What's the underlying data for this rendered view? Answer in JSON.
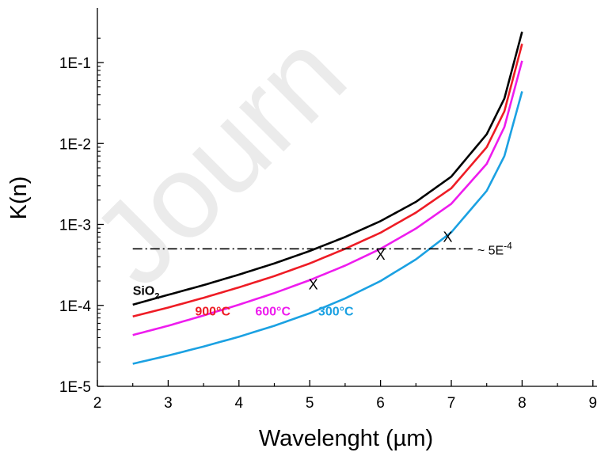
{
  "chart_data": {
    "type": "line",
    "title": "",
    "xlabel": "Wavelenght (µm)",
    "ylabel": "K(n)",
    "xlim": [
      2,
      9
    ],
    "ylim": [
      1e-05,
      0.3
    ],
    "yscale": "log",
    "xticks": [
      "2",
      "3",
      "4",
      "5",
      "6",
      "7",
      "8",
      "9"
    ],
    "yticks": [
      "1E-5",
      "1E-4",
      "1E-3",
      "1E-2",
      "1E-1"
    ],
    "grid": false,
    "watermark": "Journ",
    "series": [
      {
        "name": "SiO2",
        "color": "#000000",
        "points": [
          [
            2.5,
            0.000102
          ],
          [
            3,
            0.000135
          ],
          [
            3.5,
            0.000178
          ],
          [
            4,
            0.00024
          ],
          [
            4.5,
            0.00033
          ],
          [
            5,
            0.00047
          ],
          [
            5.5,
            0.0007
          ],
          [
            6,
            0.0011
          ],
          [
            6.5,
            0.0019
          ],
          [
            7,
            0.0039
          ],
          [
            7.5,
            0.013
          ],
          [
            7.75,
            0.036
          ],
          [
            8,
            0.24
          ]
        ]
      },
      {
        "name": "900°C",
        "color": "#ee1c25",
        "points": [
          [
            2.5,
            7.3e-05
          ],
          [
            3,
            9.4e-05
          ],
          [
            3.5,
            0.000124
          ],
          [
            4,
            0.000167
          ],
          [
            4.5,
            0.00023
          ],
          [
            5,
            0.00033
          ],
          [
            5.5,
            0.0005
          ],
          [
            6,
            0.00079
          ],
          [
            6.5,
            0.0014
          ],
          [
            7,
            0.0028
          ],
          [
            7.5,
            0.009
          ],
          [
            7.75,
            0.025
          ],
          [
            8,
            0.17
          ]
        ]
      },
      {
        "name": "600°C",
        "color": "#ee1cee",
        "points": [
          [
            2.5,
            4.3e-05
          ],
          [
            3,
            5.6e-05
          ],
          [
            3.5,
            7.5e-05
          ],
          [
            4,
            0.000102
          ],
          [
            4.5,
            0.000142
          ],
          [
            5,
            0.000205
          ],
          [
            5.5,
            0.00031
          ],
          [
            6,
            0.0005
          ],
          [
            6.5,
            0.00089
          ],
          [
            7,
            0.0018
          ],
          [
            7.5,
            0.0056
          ],
          [
            7.75,
            0.016
          ],
          [
            8,
            0.105
          ]
        ]
      },
      {
        "name": "300°C",
        "color": "#1ba1e2",
        "points": [
          [
            2.5,
            1.9e-05
          ],
          [
            3,
            2.4e-05
          ],
          [
            3.5,
            3.1e-05
          ],
          [
            4,
            4.1e-05
          ],
          [
            4.5,
            5.6e-05
          ],
          [
            5,
            8e-05
          ],
          [
            5.5,
            0.000122
          ],
          [
            6,
            0.0002
          ],
          [
            6.5,
            0.00037
          ],
          [
            7,
            0.0008
          ],
          [
            7.5,
            0.0026
          ],
          [
            7.75,
            0.007
          ],
          [
            8,
            0.044
          ]
        ]
      }
    ],
    "threshold": {
      "y": 0.0005,
      "x_range": [
        2.5,
        7.3
      ],
      "label": "~ 5E",
      "label_exp": "-4"
    },
    "markers": [
      {
        "symbol": "X",
        "x": 5.05,
        "y": 0.000185
      },
      {
        "symbol": "X",
        "x": 6.0,
        "y": 0.00043
      },
      {
        "symbol": "X",
        "x": 6.95,
        "y": 0.00071
      }
    ],
    "annotations": [
      {
        "text": "SiO",
        "sub": "2",
        "color": "#000000",
        "x": 2.5,
        "y": 0.000135
      },
      {
        "text": "900°C",
        "color": "#ee1c25",
        "x": 3.38,
        "y": 7.5e-05
      },
      {
        "text": "600°C",
        "color": "#ee1cee",
        "x": 4.23,
        "y": 7.5e-05
      },
      {
        "text": "300°C",
        "color": "#1ba1e2",
        "x": 5.12,
        "y": 7.5e-05
      }
    ]
  }
}
